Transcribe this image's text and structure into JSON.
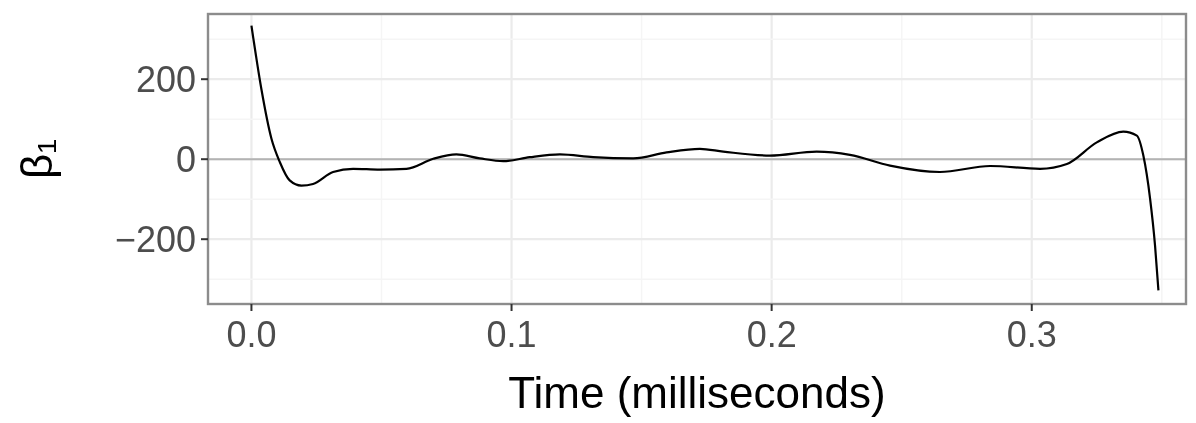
{
  "chart_data": {
    "type": "line",
    "xlabel": "Time (milliseconds)",
    "ylabel": "β₁",
    "xlim": [
      -0.0167,
      0.3593
    ],
    "ylim": [
      -362,
      363
    ],
    "xticks": [
      {
        "value": 0,
        "label": "0.0"
      },
      {
        "value": 0.05,
        "label": null
      },
      {
        "value": 0.1,
        "label": "0.1"
      },
      {
        "value": 0.15,
        "label": null
      },
      {
        "value": 0.2,
        "label": "0.2"
      },
      {
        "value": 0.25,
        "label": null
      },
      {
        "value": 0.3,
        "label": "0.3"
      },
      {
        "value": 0.35,
        "label": null
      }
    ],
    "yticks": [
      {
        "value": -300,
        "label": null
      },
      {
        "value": -200,
        "label": "−200"
      },
      {
        "value": -100,
        "label": null
      },
      0,
      {
        "value": 100,
        "label": null
      },
      200,
      {
        "value": 300,
        "label": null
      }
    ],
    "grid": true,
    "ref_lines": [
      {
        "axis": "y",
        "value": 0,
        "color": "#b3b3b3"
      }
    ],
    "series": [
      {
        "color": "#000000",
        "x": [
          0,
          0.0038,
          0.0077,
          0.0109,
          0.0147,
          0.0192,
          0.0237,
          0.0314,
          0.0391,
          0.0494,
          0.0596,
          0.0699,
          0.0788,
          0.0878,
          0.0968,
          0.107,
          0.1186,
          0.1314,
          0.1468,
          0.1596,
          0.1724,
          0.1814,
          0.1993,
          0.2173,
          0.2301,
          0.2455,
          0.2647,
          0.284,
          0.3032,
          0.3135,
          0.325,
          0.3352,
          0.3404,
          0.3429,
          0.3455,
          0.3474,
          0.3487
        ],
        "values": [
          334,
          176,
          51,
          -7,
          -53,
          -66,
          -62,
          -32,
          -24,
          -26,
          -24,
          1,
          12,
          2,
          -5,
          5,
          12,
          5,
          2,
          17,
          26,
          19,
          9,
          19,
          11,
          -16,
          -32,
          -17,
          -24,
          -12,
          42,
          69,
          59,
          9,
          -99,
          -216,
          -328
        ]
      }
    ]
  }
}
